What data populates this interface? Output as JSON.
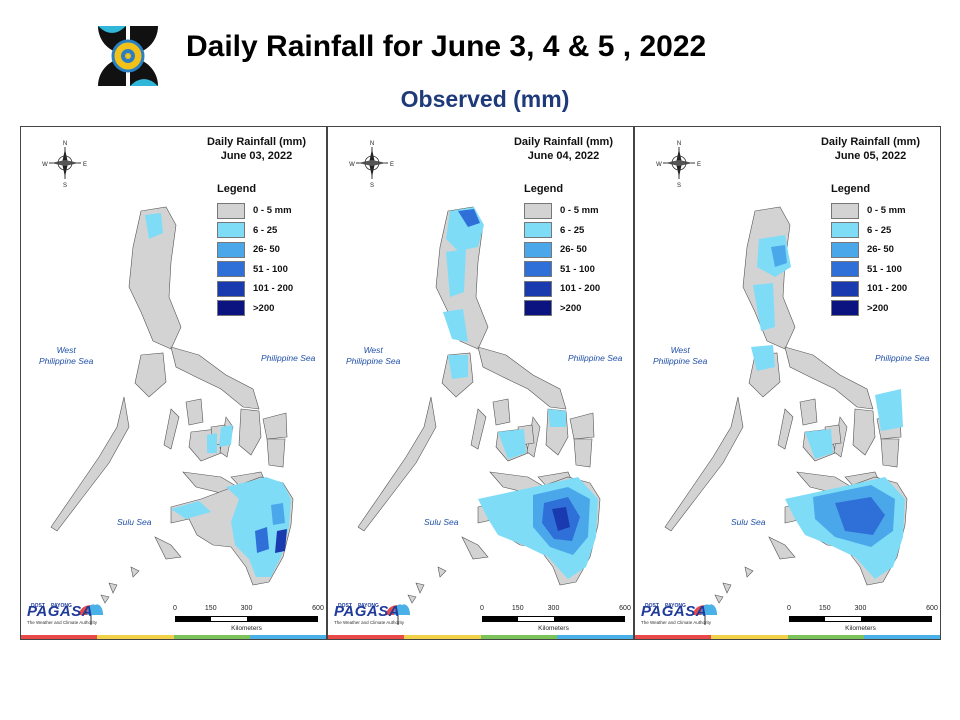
{
  "header": {
    "title": "Daily Rainfall for June 3, 4 & 5 , 2022",
    "subtitle": "Observed (mm)"
  },
  "legend": {
    "title": "Legend",
    "items": [
      {
        "label": "0 - 5 mm",
        "color": "#d3d3d3"
      },
      {
        "label": "6 - 25",
        "color": "#7fdcf7"
      },
      {
        "label": "26- 50",
        "color": "#4aa8ea"
      },
      {
        "label": "51 - 100",
        "color": "#2e6fd8"
      },
      {
        "label": "101 - 200",
        "color": "#1a3bb0"
      },
      {
        "label": ">200",
        "color": "#0a1380"
      }
    ]
  },
  "panels": [
    {
      "title_line1": "Daily Rainfall (mm)",
      "title_line2": "June 03, 2022"
    },
    {
      "title_line1": "Daily Rainfall (mm)",
      "title_line2": "June 04, 2022"
    },
    {
      "title_line1": "Daily Rainfall (mm)",
      "title_line2": "June 05, 2022"
    }
  ],
  "seas": {
    "west_line1": "West",
    "west_line2": "Philippine Sea",
    "east": "Philippine Sea",
    "sulu": "Sulu Sea"
  },
  "compass": {
    "n": "N",
    "s": "S",
    "e": "E",
    "w": "W"
  },
  "scale_bar": {
    "ticks": [
      "0",
      "150",
      "300",
      "600"
    ],
    "unit": "Kilometers"
  },
  "branding": {
    "agency": "PAGASA",
    "dost": "DOST",
    "payong": "PAYONG",
    "tagline": "The Weather and Climate Authority"
  },
  "stripe_colors": [
    "#e84a4a",
    "#f2d14a",
    "#7cc45a",
    "#4ab0e8"
  ]
}
